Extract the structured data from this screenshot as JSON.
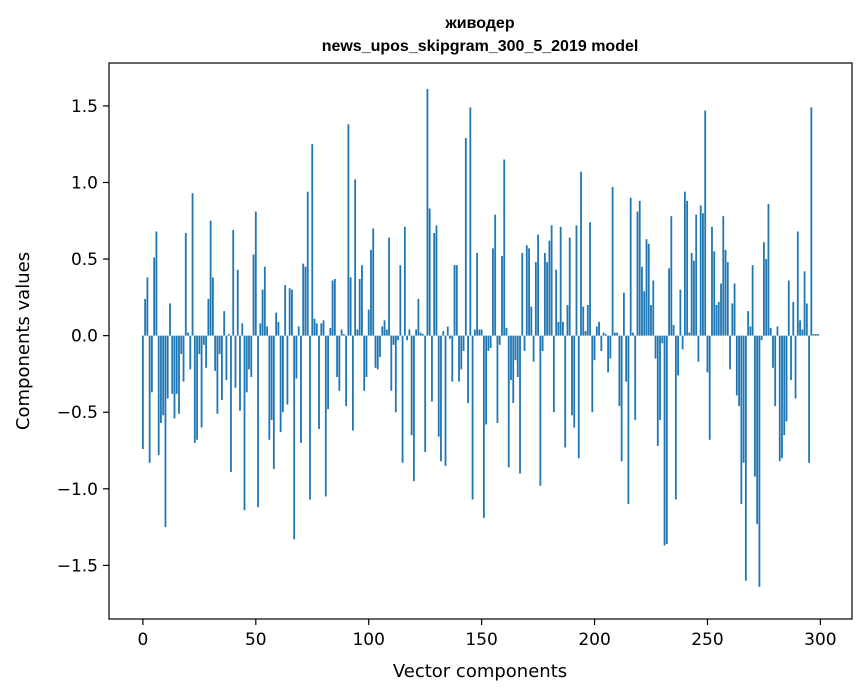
{
  "chart_data": {
    "type": "bar",
    "title_line1": "живодер",
    "title_line2": "news_upos_skipgram_300_5_2019 model",
    "xlabel": "Vector components",
    "ylabel": "Components values",
    "xlim": [
      -15,
      314
    ],
    "ylim": [
      -1.85,
      1.78
    ],
    "xticks": [
      0,
      50,
      100,
      150,
      200,
      250,
      300
    ],
    "xtick_labels": [
      "0",
      "50",
      "100",
      "150",
      "200",
      "250",
      "300"
    ],
    "yticks": [
      -1.5,
      -1.0,
      -0.5,
      0.0,
      0.5,
      1.0,
      1.5
    ],
    "ytick_labels": [
      "−1.5",
      "−1.0",
      "−0.5",
      "0.0",
      "0.5",
      "1.0",
      "1.5"
    ],
    "bar_color": "#1f77b4",
    "values": [
      -0.74,
      0.24,
      0.38,
      -0.83,
      -0.37,
      0.51,
      0.68,
      -0.78,
      -0.57,
      -0.52,
      -1.25,
      -0.41,
      0.21,
      -0.38,
      -0.54,
      -0.38,
      -0.51,
      -0.12,
      -0.3,
      0.67,
      0.02,
      -0.22,
      0.93,
      -0.7,
      -0.68,
      -0.12,
      -0.6,
      -0.06,
      -0.21,
      0.24,
      0.75,
      0.38,
      -0.23,
      -0.51,
      -0.12,
      -0.42,
      0.16,
      -0.29,
      0.01,
      -0.89,
      0.69,
      -0.34,
      0.43,
      -0.49,
      0.08,
      -1.14,
      -0.37,
      -0.22,
      -0.27,
      0.53,
      0.81,
      -1.12,
      0.08,
      0.3,
      0.45,
      0.06,
      -0.68,
      -0.55,
      -0.87,
      0.15,
      0.09,
      -0.63,
      -0.5,
      0.33,
      -0.45,
      0.31,
      0.3,
      -1.33,
      -0.28,
      0.06,
      -0.7,
      0.47,
      0.45,
      0.94,
      -1.07,
      1.25,
      0.11,
      0.08,
      -0.61,
      0.08,
      0.1,
      -1.05,
      -0.48,
      0.05,
      0.36,
      0.37,
      -0.27,
      -0.36,
      0.04,
      0.01,
      -0.46,
      1.38,
      0.38,
      -0.62,
      1.02,
      0.04,
      0.37,
      0.46,
      -0.36,
      -0.27,
      0.17,
      0.56,
      0.7,
      -0.21,
      -0.22,
      -0.14,
      0.06,
      0.1,
      0.04,
      0.64,
      -0.36,
      -0.06,
      -0.5,
      -0.03,
      0.46,
      -0.83,
      0.71,
      -0.03,
      0.04,
      -0.65,
      -0.95,
      0.04,
      0.24,
      0.02,
      0.01,
      -0.76,
      1.61,
      0.83,
      -0.43,
      0.67,
      0.72,
      -0.66,
      -0.82,
      0.03,
      -0.85,
      0.06,
      -0.02,
      -0.3,
      0.46,
      0.46,
      -0.3,
      -0.22,
      -0.1,
      1.29,
      -0.44,
      1.49,
      -1.07,
      0.04,
      0.54,
      0.04,
      0.04,
      -1.19,
      -0.58,
      -0.1,
      -0.08,
      0.57,
      0.79,
      -0.57,
      -0.06,
      0.52,
      1.15,
      0.05,
      -0.86,
      -0.29,
      -0.44,
      -0.16,
      -0.27,
      -0.9,
      0.54,
      -0.1,
      0.59,
      0.57,
      0.19,
      -0.17,
      0.48,
      0.66,
      -0.98,
      -0.1,
      0.54,
      0.48,
      0.62,
      0.72,
      -0.5,
      0.43,
      0.09,
      0.71,
      0.09,
      -0.73,
      0.2,
      0.64,
      -0.52,
      -0.6,
      0.72,
      -0.8,
      1.07,
      0.19,
      0.03,
      0.2,
      0.74,
      -0.5,
      -0.16,
      0.06,
      0.09,
      -0.1,
      0.02,
      0.01,
      -0.24,
      -0.15,
      0.97,
      0.02,
      0.02,
      -0.46,
      -0.82,
      0.28,
      -0.3,
      -1.1,
      0.9,
      0.02,
      -0.55,
      0.81,
      0.88,
      0.45,
      0.29,
      0.63,
      0.6,
      0.2,
      0.36,
      -0.15,
      -0.72,
      -0.55,
      -0.05,
      -1.37,
      -1.36,
      0.44,
      0.78,
      0.07,
      -1.07,
      -0.26,
      0.3,
      -0.09,
      0.94,
      0.88,
      0.02,
      0.54,
      0.49,
      0.79,
      -0.17,
      0.85,
      0.8,
      1.47,
      -0.24,
      -0.68,
      0.71,
      0.55,
      0.2,
      0.22,
      0.34,
      0.78,
      0.56,
      0.48,
      -0.22,
      0.21,
      0.34,
      -0.39,
      -0.46,
      -1.1,
      -0.83,
      -1.6,
      0.16,
      0.06,
      0.46,
      -0.92,
      -1.23,
      -1.64,
      -0.03,
      0.61,
      0.5,
      0.86,
      0.05,
      -0.21,
      -0.46,
      0.06,
      -0.82,
      -0.8,
      -0.65,
      -0.56,
      0.36,
      -0.29,
      0.22,
      -0.41,
      0.68,
      0.1,
      0.04,
      0.42,
      0.21,
      -0.83,
      1.49,
      0.01,
      0.01,
      0.01
    ]
  }
}
